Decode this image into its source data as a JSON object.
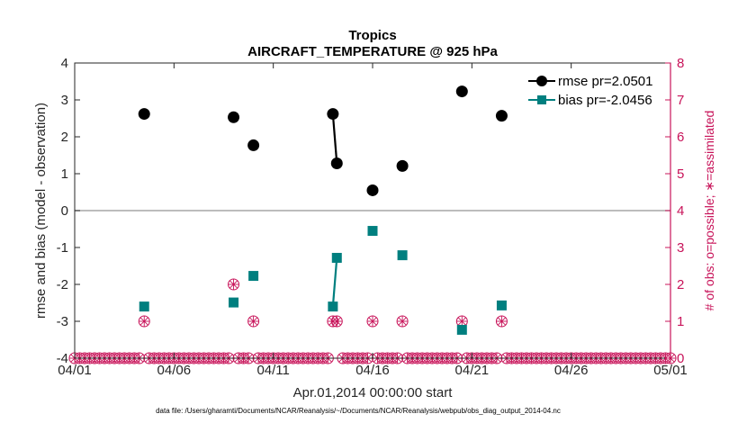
{
  "chart_data": {
    "type": "line",
    "title": "Tropics",
    "subtitle": "AIRCRAFT_TEMPERATURE @ 925 hPa",
    "xlabel": "Apr.01,2014 00:00:00 start",
    "ylabel_left": "rmse and bias (model - observation)",
    "ylabel_right": "# of obs: o=possible; ∗=assimilated",
    "xlim": [
      0,
      30
    ],
    "ylim_left": [
      -4,
      4
    ],
    "ylim_right": [
      0,
      8
    ],
    "x_ticks": [
      0,
      5,
      10,
      15,
      20,
      25,
      30
    ],
    "x_tick_labels": [
      "04/01",
      "04/06",
      "04/11",
      "04/16",
      "04/21",
      "04/26",
      "05/01"
    ],
    "y_ticks_left": [
      -4,
      -3,
      -2,
      -1,
      0,
      1,
      2,
      3,
      4
    ],
    "y_ticks_right": [
      0,
      1,
      2,
      3,
      4,
      5,
      6,
      7,
      8
    ],
    "legend_position": "top-right",
    "footer": "data file: /Users/gharamti/Documents/NCAR/Reanalysis/~/Documents/NCAR/Reanalysis/webpub/obs_diag_output_2014-04.nc",
    "colors": {
      "rmse": "#000000",
      "bias": "#007f7f",
      "obs": "#c8145a",
      "zero_line": "#a6a6a6"
    },
    "series": [
      {
        "name": "rmse pr=2.0501",
        "axis": "left",
        "marker": "circle",
        "points": [
          [
            3.5,
            2.62
          ],
          [
            8.0,
            2.53
          ],
          [
            9.0,
            1.77
          ],
          [
            13.0,
            2.62
          ],
          [
            13.2,
            1.28
          ],
          [
            15.0,
            0.55
          ],
          [
            16.5,
            1.21
          ],
          [
            19.5,
            3.23
          ],
          [
            21.5,
            2.57
          ]
        ]
      },
      {
        "name": "bias pr=-2.0456",
        "axis": "left",
        "marker": "square",
        "points": [
          [
            3.5,
            -2.6
          ],
          [
            8.0,
            -2.49
          ],
          [
            9.0,
            -1.77
          ],
          [
            13.0,
            -2.6
          ],
          [
            13.2,
            -1.28
          ],
          [
            15.0,
            -0.55
          ],
          [
            16.5,
            -1.21
          ],
          [
            19.5,
            -3.23
          ],
          [
            21.5,
            -2.57
          ]
        ]
      }
    ],
    "obs_counts": {
      "axis": "right",
      "marker": "circle-asterisk",
      "nonzero": [
        [
          3.5,
          1
        ],
        [
          8.0,
          2
        ],
        [
          9.0,
          1
        ],
        [
          13.0,
          1
        ],
        [
          13.2,
          1
        ],
        [
          15.0,
          1
        ],
        [
          16.5,
          1
        ],
        [
          19.5,
          1
        ],
        [
          21.5,
          1
        ]
      ],
      "zero_step": 0.25
    }
  }
}
